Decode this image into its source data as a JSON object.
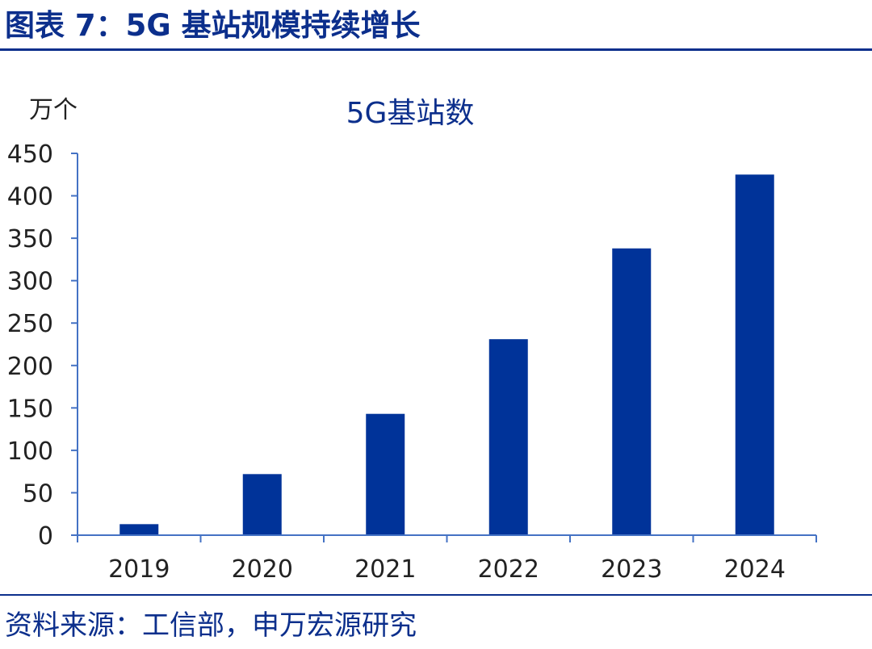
{
  "figure": {
    "title": "图表 7：5G 基站规模持续增长",
    "source": "资料来源：工信部，申万宏源研究"
  },
  "colors": {
    "accent": "#0c2f8c",
    "bar": "#003399",
    "axis": "#4472c4",
    "text": "#222222"
  },
  "chart_data": {
    "type": "bar",
    "title": "5G基站数",
    "ylabel": "万个",
    "xlabel": "",
    "categories": [
      "2019",
      "2020",
      "2021",
      "2022",
      "2023",
      "2024"
    ],
    "values": [
      13,
      72,
      143,
      231,
      338,
      425
    ],
    "ylim": [
      0,
      450
    ],
    "yticks": [
      0,
      50,
      100,
      150,
      200,
      250,
      300,
      350,
      400,
      450
    ],
    "grid": false,
    "legend": "none"
  }
}
